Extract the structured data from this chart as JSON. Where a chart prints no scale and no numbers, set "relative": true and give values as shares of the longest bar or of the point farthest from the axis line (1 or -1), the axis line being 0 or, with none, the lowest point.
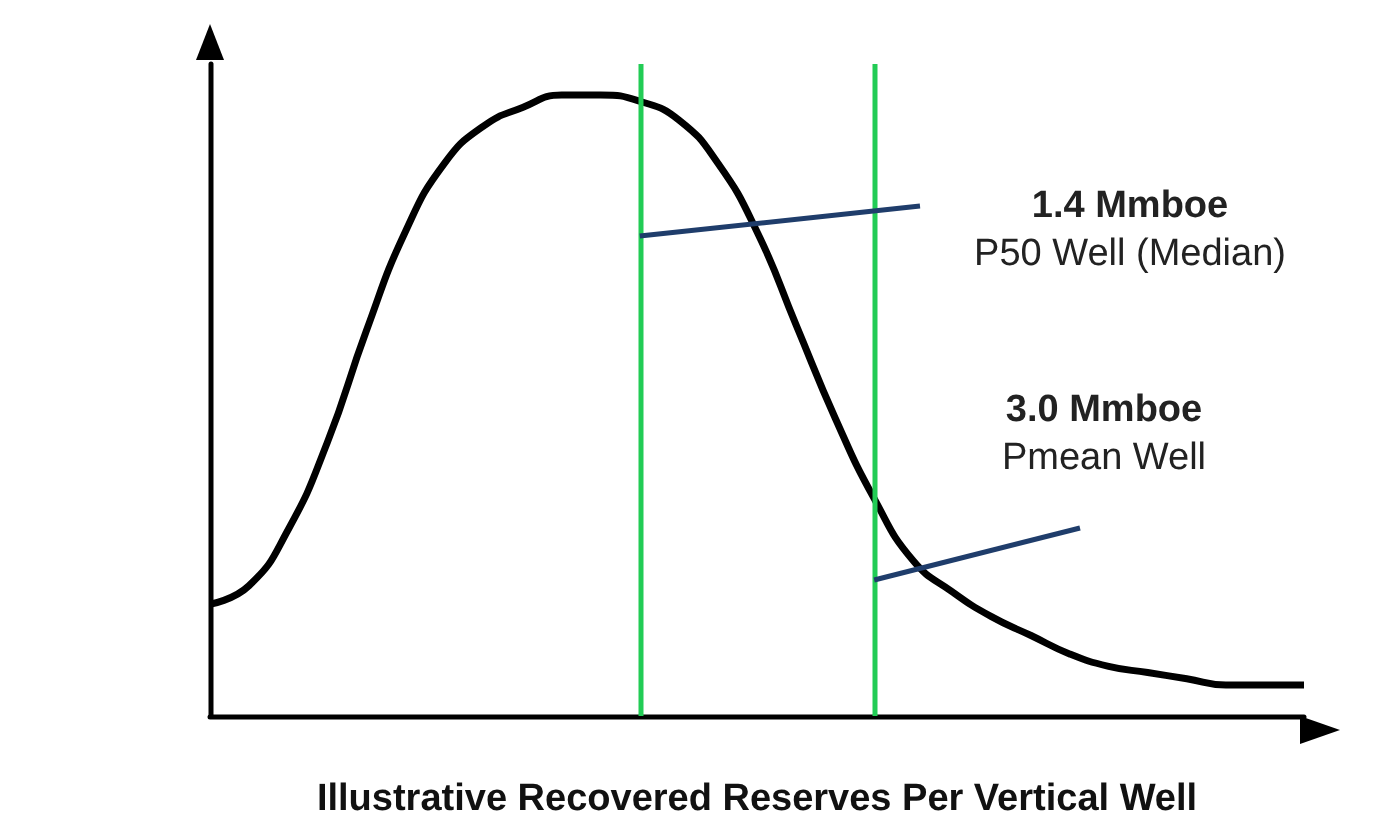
{
  "chart_data": {
    "type": "line",
    "relative": true,
    "xlabel": "Illustrative Recovered Reserves Per Vertical Well",
    "categories": [
      null,
      null,
      null,
      null,
      null,
      null,
      null,
      null,
      null,
      null,
      null,
      null,
      null,
      null,
      null,
      null,
      null,
      null,
      null,
      null,
      null,
      null,
      null,
      null,
      null,
      null,
      null,
      null,
      null
    ],
    "series": [
      {
        "color": "#000000",
        "values": [
          0.18,
          0.21,
          0.3,
          0.44,
          0.62,
          0.78,
          0.89,
          0.95,
          0.98,
          1,
          1,
          0.99,
          0.96,
          0.89,
          0.78,
          0.63,
          0.48,
          0.35,
          0.25,
          0.2,
          0.16,
          0.13,
          0.1,
          0.08,
          0.07,
          0.06,
          0.05,
          0.05,
          0.05
        ]
      }
    ],
    "annotations": [
      "1.4 Mmboe",
      "P50 Well (Median)",
      "3.0 Mmboe",
      "Pmean Well"
    ]
  }
}
